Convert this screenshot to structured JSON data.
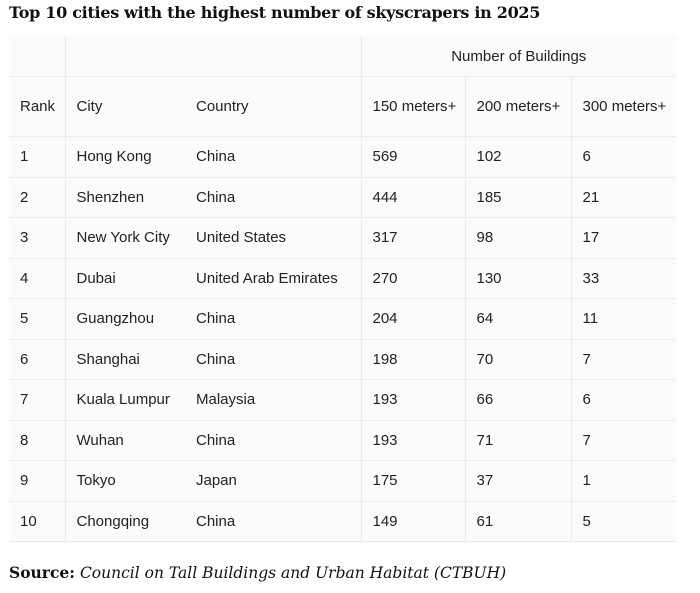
{
  "title": "Top 10 cities with the highest number of skyscrapers in 2025",
  "table": {
    "group_header": "Number of Buildings",
    "headers": {
      "rank": "Rank",
      "city": "City",
      "country": "Country",
      "m150": "150 meters+",
      "m200": "200 meters+",
      "m300": "300 meters+"
    },
    "rows": [
      {
        "rank": "1",
        "city": "Hong Kong",
        "country": "China",
        "m150": "569",
        "m200": "102",
        "m300": "6"
      },
      {
        "rank": "2",
        "city": "Shenzhen",
        "country": "China",
        "m150": "444",
        "m200": "185",
        "m300": "21"
      },
      {
        "rank": "3",
        "city": "New York City",
        "country": "United States",
        "m150": "317",
        "m200": "98",
        "m300": "17"
      },
      {
        "rank": "4",
        "city": "Dubai",
        "country": "United Arab Emirates",
        "m150": "270",
        "m200": "130",
        "m300": "33"
      },
      {
        "rank": "5",
        "city": "Guangzhou",
        "country": "China",
        "m150": "204",
        "m200": "64",
        "m300": "11"
      },
      {
        "rank": "6",
        "city": "Shanghai",
        "country": "China",
        "m150": "198",
        "m200": "70",
        "m300": "7"
      },
      {
        "rank": "7",
        "city": "Kuala Lumpur",
        "country": "Malaysia",
        "m150": "193",
        "m200": "66",
        "m300": "6"
      },
      {
        "rank": "8",
        "city": "Wuhan",
        "country": "China",
        "m150": "193",
        "m200": "71",
        "m300": "7"
      },
      {
        "rank": "9",
        "city": "Tokyo",
        "country": "Japan",
        "m150": "175",
        "m200": "37",
        "m300": "1"
      },
      {
        "rank": "10",
        "city": "Chongqing",
        "country": "China",
        "m150": "149",
        "m200": "61",
        "m300": "5"
      }
    ]
  },
  "source": {
    "label": "Source:",
    "text": "Council on Tall Buildings and Urban Habitat (CTBUH)"
  },
  "chart_data": {
    "type": "table",
    "title": "Top 10 cities with the highest number of skyscrapers in 2025",
    "columns": [
      "Rank",
      "City",
      "Country",
      "150 meters+",
      "200 meters+",
      "300 meters+"
    ],
    "column_group": {
      "label": "Number of Buildings",
      "spans": [
        "150 meters+",
        "200 meters+",
        "300 meters+"
      ]
    },
    "rows": [
      [
        1,
        "Hong Kong",
        "China",
        569,
        102,
        6
      ],
      [
        2,
        "Shenzhen",
        "China",
        444,
        185,
        21
      ],
      [
        3,
        "New York City",
        "United States",
        317,
        98,
        17
      ],
      [
        4,
        "Dubai",
        "United Arab Emirates",
        270,
        130,
        33
      ],
      [
        5,
        "Guangzhou",
        "China",
        204,
        64,
        11
      ],
      [
        6,
        "Shanghai",
        "China",
        198,
        70,
        7
      ],
      [
        7,
        "Kuala Lumpur",
        "Malaysia",
        193,
        66,
        6
      ],
      [
        8,
        "Wuhan",
        "China",
        193,
        71,
        7
      ],
      [
        9,
        "Tokyo",
        "Japan",
        175,
        37,
        1
      ],
      [
        10,
        "Chongqing",
        "China",
        149,
        61,
        5
      ]
    ],
    "source": "Council on Tall Buildings and Urban Habitat (CTBUH)"
  }
}
